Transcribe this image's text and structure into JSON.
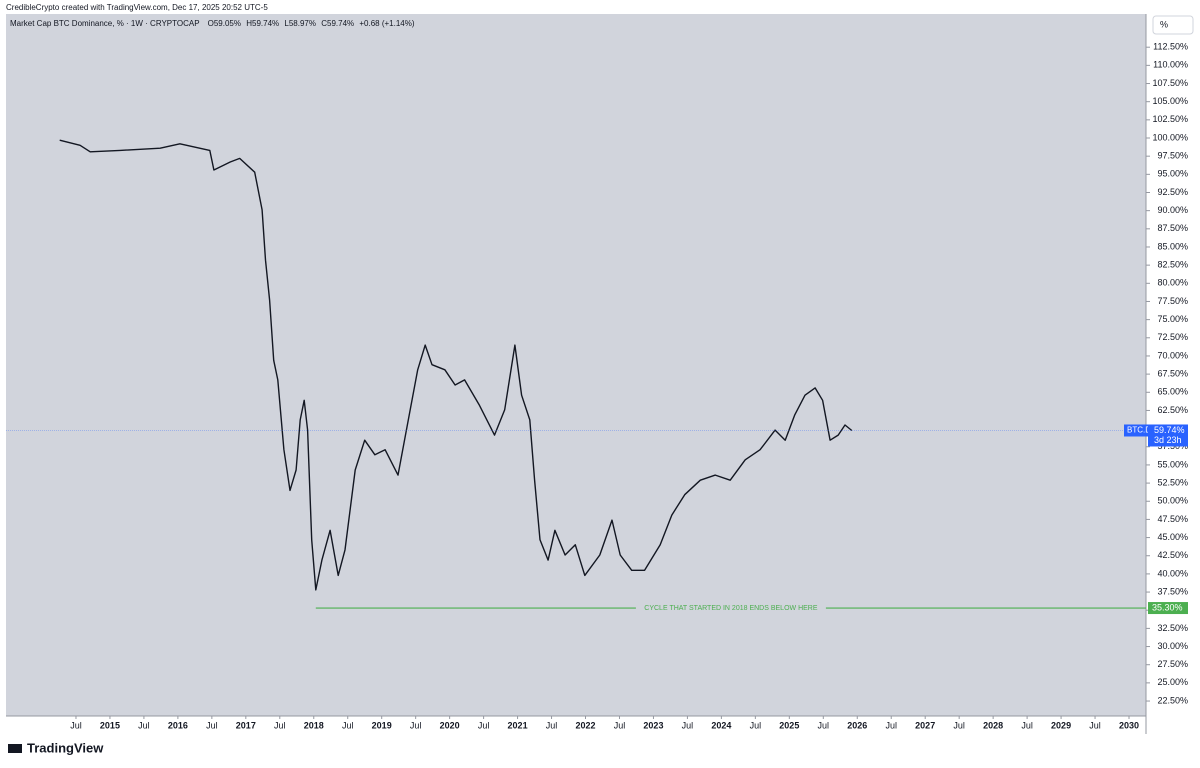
{
  "header": "CredibleCrypto created with TradingView.com, Dec 17, 2025 20:52 UTC-5",
  "footer": "TradingView",
  "scale_button": "%",
  "chart_data": {
    "type": "line",
    "title": "Market Cap BTC Dominance, % · 1W · CRYPTOCAP",
    "ohlc": [
      {
        "key": "O",
        "value": "59.05%"
      },
      {
        "key": "H",
        "value": "59.74%"
      },
      {
        "key": "L",
        "value": "58.97%"
      },
      {
        "key": "C",
        "value": "59.74%"
      }
    ],
    "change": "+0.68 (+1.14%)",
    "series": [
      {
        "name": "BTC.D",
        "color": "#131722",
        "x": [
          2014.26,
          2014.56,
          2014.71,
          2015.15,
          2015.74,
          2016.03,
          2016.47,
          2016.53,
          2016.77,
          2016.91,
          2017.13,
          2017.24,
          2017.29,
          2017.35,
          2017.41,
          2017.47,
          2017.56,
          2017.65,
          2017.74,
          2017.8,
          2017.86,
          2017.91,
          2017.97,
          2018.03,
          2018.12,
          2018.24,
          2018.36,
          2018.46,
          2018.61,
          2018.75,
          2018.9,
          2019.05,
          2019.24,
          2019.42,
          2019.53,
          2019.64,
          2019.74,
          2019.93,
          2020.08,
          2020.22,
          2020.44,
          2020.66,
          2020.81,
          2020.96,
          2021.06,
          2021.18,
          2021.25,
          2021.33,
          2021.45,
          2021.55,
          2021.7,
          2021.85,
          2021.99,
          2022.21,
          2022.39,
          2022.51,
          2022.68,
          2022.87,
          2023.1,
          2023.27,
          2023.46,
          2023.69,
          2023.91,
          2024.13,
          2024.35,
          2024.57,
          2024.79,
          2024.94,
          2025.08,
          2025.23,
          2025.38,
          2025.49,
          2025.6,
          2025.72,
          2025.82,
          2025.92
        ],
        "values": [
          99.7,
          99.0,
          98.1,
          98.3,
          98.6,
          99.2,
          98.3,
          95.6,
          96.7,
          97.2,
          95.3,
          90.1,
          83.2,
          77.7,
          69.4,
          66.7,
          57.1,
          51.5,
          54.3,
          61.2,
          63.9,
          59.8,
          44.7,
          37.8,
          41.9,
          46.0,
          39.8,
          43.3,
          54.3,
          58.4,
          56.4,
          57.1,
          53.6,
          62.6,
          68.1,
          71.5,
          68.8,
          68.1,
          66.0,
          66.7,
          63.2,
          59.1,
          62.6,
          71.5,
          64.6,
          61.2,
          52.9,
          44.7,
          41.9,
          46.0,
          42.6,
          44.0,
          39.8,
          42.6,
          47.4,
          42.6,
          40.5,
          40.5,
          44.0,
          48.1,
          50.9,
          52.9,
          53.6,
          52.9,
          55.7,
          57.1,
          59.8,
          58.4,
          61.9,
          64.6,
          65.6,
          63.9,
          58.4,
          59.1,
          60.5,
          59.74
        ]
      }
    ],
    "last_price": {
      "name": "BTC.D",
      "value": 59.74,
      "label": "59.74%",
      "countdown": "3d 23h",
      "color": "#2962ff"
    },
    "annotations": [
      {
        "text": "CYCLE THAT STARTED IN 2018 ENDS BELOW HERE",
        "value": 35.3,
        "label": "35.30%",
        "x_start": 2018.03,
        "color": "#4caf50"
      }
    ],
    "xlim": [
      2013.47,
      2030.25
    ],
    "ylim": [
      20.44,
      117.07
    ],
    "xticks": [
      {
        "value": 2014.5,
        "label": "Jul"
      },
      2015,
      {
        "value": 2015.5,
        "label": "Jul"
      },
      2016,
      {
        "value": 2016.5,
        "label": "Jul"
      },
      2017,
      {
        "value": 2017.5,
        "label": "Jul"
      },
      2018,
      {
        "value": 2018.5,
        "label": "Jul"
      },
      2019,
      {
        "value": 2019.5,
        "label": "Jul"
      },
      2020,
      {
        "value": 2020.5,
        "label": "Jul"
      },
      2021,
      {
        "value": 2021.5,
        "label": "Jul"
      },
      2022,
      {
        "value": 2022.5,
        "label": "Jul"
      },
      2023,
      {
        "value": 2023.5,
        "label": "Jul"
      },
      2024,
      {
        "value": 2024.5,
        "label": "Jul"
      },
      2025,
      {
        "value": 2025.5,
        "label": "Jul"
      },
      2026,
      {
        "value": 2026.5,
        "label": "Jul"
      },
      2027,
      {
        "value": 2027.5,
        "label": "Jul"
      },
      2028,
      {
        "value": 2028.5,
        "label": "Jul"
      },
      2029,
      {
        "value": 2029.5,
        "label": "Jul"
      },
      2030
    ],
    "yticks": [
      {
        "value": 22.5,
        "label": "22.50%"
      },
      {
        "value": 25,
        "label": "25.00%"
      },
      {
        "value": 27.5,
        "label": "27.50%"
      },
      {
        "value": 30,
        "label": "30.00%"
      },
      {
        "value": 32.5,
        "label": "32.50%"
      },
      {
        "value": 35,
        "label": "35.00%"
      },
      {
        "value": 37.5,
        "label": "37.50%"
      },
      {
        "value": 40,
        "label": "40.00%"
      },
      {
        "value": 42.5,
        "label": "42.50%"
      },
      {
        "value": 45,
        "label": "45.00%"
      },
      {
        "value": 47.5,
        "label": "47.50%"
      },
      {
        "value": 50,
        "label": "50.00%"
      },
      {
        "value": 52.5,
        "label": "52.50%"
      },
      {
        "value": 55,
        "label": "55.00%"
      },
      {
        "value": 57.5,
        "label": "57.50%"
      },
      {
        "value": 60,
        "label": "60.00%"
      },
      {
        "value": 62.5,
        "label": "62.50%"
      },
      {
        "value": 65,
        "label": "65.00%"
      },
      {
        "value": 67.5,
        "label": "67.50%"
      },
      {
        "value": 70,
        "label": "70.00%"
      },
      {
        "value": 72.5,
        "label": "72.50%"
      },
      {
        "value": 75,
        "label": "75.00%"
      },
      {
        "value": 77.5,
        "label": "77.50%"
      },
      {
        "value": 80,
        "label": "80.00%"
      },
      {
        "value": 82.5,
        "label": "82.50%"
      },
      {
        "value": 85,
        "label": "85.00%"
      },
      {
        "value": 87.5,
        "label": "87.50%"
      },
      {
        "value": 90,
        "label": "90.00%"
      },
      {
        "value": 92.5,
        "label": "92.50%"
      },
      {
        "value": 95,
        "label": "95.00%"
      },
      {
        "value": 97.5,
        "label": "97.50%"
      },
      {
        "value": 100,
        "label": "100.00%"
      },
      {
        "value": 102.5,
        "label": "102.50%"
      },
      {
        "value": 105,
        "label": "105.00%"
      },
      {
        "value": 107.5,
        "label": "107.50%"
      },
      {
        "value": 110,
        "label": "110.00%"
      },
      {
        "value": 112.5,
        "label": "112.50%"
      }
    ],
    "grid": false
  }
}
